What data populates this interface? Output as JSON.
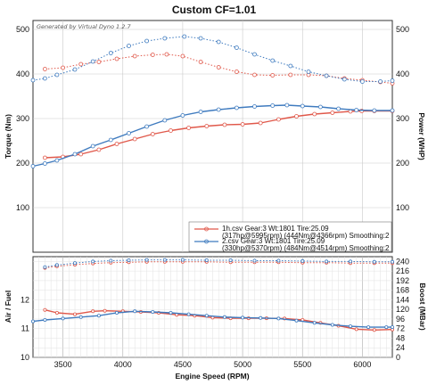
{
  "title": "Custom CF=1.01",
  "generated_by": "Generated by Virtual Dyno 1.2.7",
  "colors": {
    "run1": "#e0584a",
    "run2": "#3f7bbf",
    "grid": "#c9c9c9",
    "axis": "#333333"
  },
  "chart_data": [
    {
      "type": "line",
      "xlabel": "",
      "ylabel": "Torque (Nm)",
      "y2label": "Power (WHP)",
      "xlim": [
        3250,
        6250
      ],
      "ylim": [
        0,
        520
      ],
      "y2lim": [
        0,
        520
      ],
      "yticks": [
        100,
        200,
        300,
        400,
        500
      ],
      "y2ticks": [
        100,
        200,
        300,
        400,
        500
      ],
      "legend_position": "bottom-right",
      "legend": [
        {
          "line1": "1h.csv Gear:3 Wt:1801 Tire:25.09",
          "line2": "(317hp@5995rpm) (444Nm@4366rpm) Smoothing:2"
        },
        {
          "line1": "2.csv Gear:3 Wt:1801 Tire:25.09",
          "line2": "(330hp@5370rpm) (484Nm@4514rpm) Smoothing:2"
        }
      ],
      "series": [
        {
          "name": "1h.csv",
          "kind": "torque",
          "color": "#e0584a",
          "x": [
            3350,
            3500,
            3650,
            3800,
            3950,
            4100,
            4250,
            4366,
            4500,
            4650,
            4800,
            4950,
            5100,
            5250,
            5400,
            5550,
            5700,
            5850,
            6000,
            6150,
            6250
          ],
          "y": [
            411,
            414,
            422,
            427,
            434,
            440,
            443,
            444,
            440,
            427,
            415,
            405,
            398,
            397,
            398,
            398,
            396,
            390,
            386,
            382,
            379
          ]
        },
        {
          "name": "2.csv",
          "kind": "torque",
          "color": "#3f7bbf",
          "x": [
            3250,
            3350,
            3450,
            3600,
            3750,
            3900,
            4050,
            4200,
            4350,
            4514,
            4650,
            4800,
            4950,
            5100,
            5250,
            5400,
            5550,
            5700,
            5850,
            6000,
            6150,
            6250
          ],
          "y": [
            386,
            390,
            398,
            410,
            428,
            447,
            463,
            474,
            480,
            484,
            480,
            472,
            459,
            444,
            430,
            418,
            405,
            396,
            388,
            383,
            383,
            385
          ]
        },
        {
          "name": "1h.csv",
          "kind": "power",
          "color": "#e0584a",
          "x": [
            3350,
            3500,
            3650,
            3800,
            3950,
            4100,
            4250,
            4400,
            4550,
            4700,
            4850,
            5000,
            5150,
            5300,
            5450,
            5600,
            5750,
            5900,
            5995,
            6100,
            6250
          ],
          "y": [
            212,
            214,
            220,
            230,
            243,
            254,
            265,
            273,
            279,
            283,
            286,
            287,
            290,
            298,
            305,
            310,
            313,
            316,
            317,
            317,
            317
          ]
        },
        {
          "name": "2.csv",
          "kind": "power",
          "color": "#3f7bbf",
          "x": [
            3250,
            3350,
            3450,
            3600,
            3750,
            3900,
            4050,
            4200,
            4350,
            4500,
            4650,
            4800,
            4950,
            5100,
            5250,
            5370,
            5500,
            5650,
            5800,
            5950,
            6100,
            6250
          ],
          "y": [
            193,
            199,
            206,
            220,
            238,
            252,
            267,
            282,
            296,
            307,
            315,
            320,
            324,
            327,
            329,
            330,
            328,
            326,
            322,
            319,
            318,
            318
          ]
        }
      ]
    },
    {
      "type": "line",
      "xlabel": "Engine Speed (RPM)",
      "ylabel": "Air / Fuel",
      "y2label": "Boost (MBar)",
      "xlim": [
        3250,
        6250
      ],
      "ylim": [
        10,
        13.5
      ],
      "y2lim": [
        0,
        252
      ],
      "xticks": [
        3500,
        4000,
        4500,
        5000,
        5500,
        6000
      ],
      "yticks": [
        10,
        11,
        12
      ],
      "y2ticks": [
        0,
        24,
        48,
        72,
        96,
        120,
        144,
        168,
        192,
        216,
        240
      ],
      "series": [
        {
          "name": "1h.csv",
          "kind": "air-fuel",
          "color": "#e0584a",
          "x": [
            3350,
            3450,
            3600,
            3750,
            3850,
            4000,
            4150,
            4300,
            4450,
            4600,
            4750,
            4900,
            5050,
            5200,
            5350,
            5500,
            5650,
            5800,
            5950,
            6100,
            6250
          ],
          "y": [
            11.65,
            11.55,
            11.5,
            11.6,
            11.62,
            11.6,
            11.58,
            11.55,
            11.48,
            11.45,
            11.38,
            11.36,
            11.36,
            11.36,
            11.35,
            11.3,
            11.2,
            11.1,
            10.98,
            10.95,
            10.97
          ]
        },
        {
          "name": "2.csv",
          "kind": "air-fuel",
          "color": "#3f7bbf",
          "x": [
            3250,
            3350,
            3500,
            3650,
            3800,
            3950,
            4100,
            4250,
            4400,
            4550,
            4700,
            4850,
            5000,
            5150,
            5300,
            5450,
            5600,
            5750,
            5900,
            6050,
            6200,
            6250
          ],
          "y": [
            11.25,
            11.3,
            11.35,
            11.4,
            11.45,
            11.55,
            11.6,
            11.58,
            11.55,
            11.5,
            11.45,
            11.4,
            11.38,
            11.37,
            11.35,
            11.28,
            11.2,
            11.13,
            11.08,
            11.05,
            11.05,
            11.05
          ]
        },
        {
          "name": "1h.csv",
          "kind": "boost",
          "color": "#e0584a",
          "x": [
            3350,
            3450,
            3600,
            3750,
            3900,
            4050,
            4200,
            4350,
            4500,
            4700,
            4900,
            5100,
            5300,
            5500,
            5700,
            5900,
            6100,
            6250
          ],
          "y": [
            224,
            228,
            232,
            235,
            237,
            238,
            239,
            239,
            239,
            239,
            238,
            238,
            238,
            237,
            237,
            236,
            236,
            236
          ]
        },
        {
          "name": "2.csv",
          "kind": "boost",
          "color": "#3f7bbf",
          "x": [
            3350,
            3450,
            3600,
            3750,
            3900,
            4050,
            4200,
            4350,
            4500,
            4700,
            4900,
            5100,
            5300,
            5500,
            5700,
            5900,
            6100,
            6250
          ],
          "y": [
            226,
            231,
            236,
            240,
            242,
            243,
            244,
            244,
            244,
            243,
            243,
            242,
            242,
            241,
            240,
            240,
            239,
            239
          ]
        }
      ]
    }
  ]
}
